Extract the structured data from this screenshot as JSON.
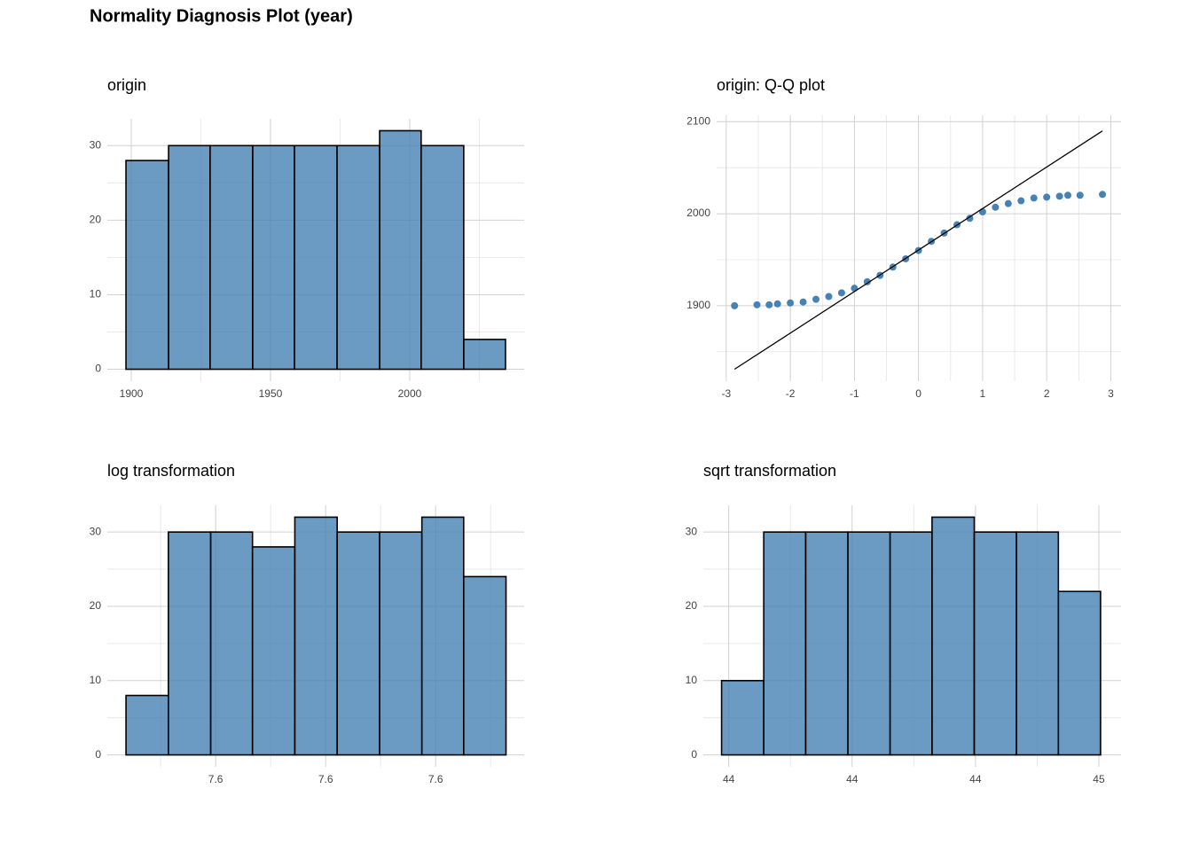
{
  "title": "Normality Diagnosis Plot (year)",
  "chart_data": [
    {
      "type": "histogram",
      "title": "origin",
      "bins": [
        1898.1,
        1913.4,
        1928.3,
        1943.6,
        1958.6,
        1973.9,
        1989.2,
        2004.1,
        2019.4,
        2034.4
      ],
      "values": [
        28,
        30,
        30,
        30,
        30,
        30,
        32,
        30,
        4
      ],
      "color": "#4682b4",
      "xlim": [
        1891.4,
        2041.1
      ],
      "xticks": [
        1900,
        1950,
        2000
      ],
      "ylim": [
        -1.6,
        33.6
      ],
      "yticks": [
        0,
        10,
        20,
        30
      ],
      "grid": true
    },
    {
      "type": "scatter",
      "title": "origin: Q-Q plot",
      "x": [
        -2.87,
        -2.52,
        -2.33,
        -2.2,
        -2.0,
        -1.8,
        -1.6,
        -1.4,
        -1.2,
        -1.0,
        -0.8,
        -0.6,
        -0.4,
        -0.2,
        0,
        0.2,
        0.4,
        0.6,
        0.8,
        1.0,
        1.2,
        1.4,
        1.6,
        1.8,
        2.0,
        2.2,
        2.33,
        2.52,
        2.87
      ],
      "values": [
        1900,
        1901,
        1901,
        1902,
        1903,
        1904,
        1907,
        1910,
        1914,
        1919,
        1926,
        1933,
        1942,
        1951,
        1960,
        1970,
        1979,
        1988,
        1995,
        2002,
        2007,
        2011,
        2014,
        2017,
        2018,
        2019,
        2020,
        2020,
        2021
      ],
      "color": "#4682b4",
      "reference_line": {
        "x": [
          -2.87,
          2.87
        ],
        "values": [
          1831,
          2090
        ],
        "color": "#000000"
      },
      "xlim": [
        -3.15,
        3.16
      ],
      "xticks": [
        -3,
        -2,
        -1,
        0,
        1,
        2,
        3
      ],
      "ylim": [
        1818,
        2107
      ],
      "yticks": [
        1900,
        2000,
        2100
      ],
      "grid": true
    },
    {
      "type": "histogram",
      "title": "log transformation",
      "bins": [
        7.5437,
        7.5514,
        7.5591,
        7.5667,
        7.5744,
        7.5821,
        7.5898,
        7.5975,
        7.6051,
        7.6128
      ],
      "values": [
        8,
        30,
        30,
        28,
        32,
        30,
        30,
        32,
        24
      ],
      "color": "#4682b4",
      "xlim": [
        7.5403,
        7.6161
      ],
      "xticks": [
        {
          "value": 7.56,
          "label": "7.6"
        },
        {
          "value": 7.58,
          "label": "7.6"
        },
        {
          "value": 7.6,
          "label": "7.6"
        }
      ],
      "ylim": [
        -1.6,
        33.6
      ],
      "yticks": [
        0,
        10,
        20,
        30
      ],
      "grid": true
    },
    {
      "type": "histogram",
      "title": "sqrt transformation",
      "bins": [
        43.471,
        43.642,
        43.812,
        43.983,
        44.154,
        44.324,
        44.495,
        44.666,
        44.836,
        45.007
      ],
      "values": [
        10,
        30,
        30,
        30,
        30,
        32,
        30,
        30,
        22
      ],
      "color": "#4682b4",
      "xlim": [
        43.397,
        45.09
      ],
      "xticks": [
        {
          "value": 43.5,
          "label": "44"
        },
        44,
        {
          "value": 44.5,
          "label": "44"
        },
        45
      ],
      "ylim": [
        -1.6,
        33.6
      ],
      "yticks": [
        0,
        10,
        20,
        30
      ],
      "grid": true
    }
  ]
}
